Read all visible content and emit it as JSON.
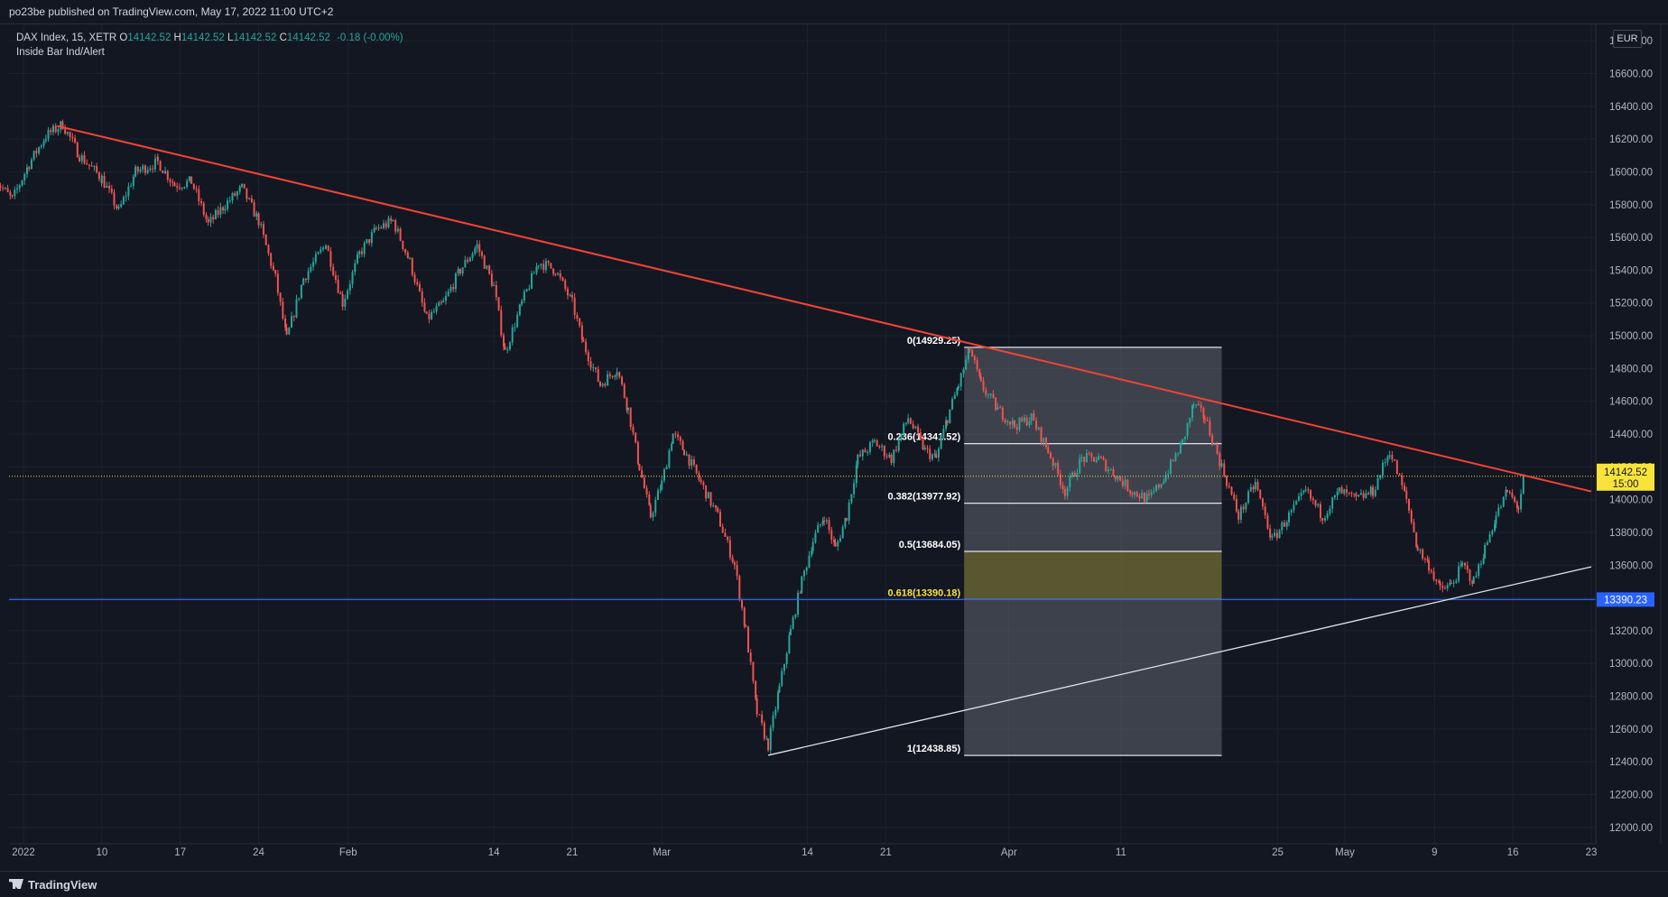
{
  "header": {
    "published": "po23be published on TradingView.com, May 17, 2022 11:00 UTC+2"
  },
  "legend": {
    "symbol": "DAX Index, 15, XETR",
    "open_label": "O",
    "open": "14142.52",
    "high_label": "H",
    "high": "14142.52",
    "low_label": "L",
    "low": "14142.52",
    "close_label": "C",
    "close": "14142.52",
    "change": "-0.18 (-0.00%)",
    "indicator": "Inside Bar Ind/Alert"
  },
  "currency": "EUR",
  "footer": {
    "brand": "TradingView"
  },
  "colors": {
    "up": "#26a69a",
    "down": "#ef5350",
    "trend": "#f44336",
    "support": "#2962ff",
    "price": "#f7e33c",
    "fib_zone": "#5c5a2e"
  },
  "chart_data": {
    "type": "candlestick",
    "title": "DAX Index, 15, XETR",
    "ylim": [
      11900,
      16900
    ],
    "y_ticks": [
      "16800.00",
      "16600.00",
      "16400.00",
      "16200.00",
      "16000.00",
      "15800.00",
      "15600.00",
      "15400.00",
      "15200.00",
      "15000.00",
      "14800.00",
      "14600.00",
      "14400.00",
      "14200.00",
      "14000.00",
      "13800.00",
      "13600.00",
      "13400.00",
      "13200.00",
      "13000.00",
      "12800.00",
      "12600.00",
      "12400.00",
      "12200.00",
      "12000.00"
    ],
    "x_ticks": [
      {
        "label": "2022",
        "day": 3
      },
      {
        "label": "10",
        "day": 10
      },
      {
        "label": "17",
        "day": 17
      },
      {
        "label": "24",
        "day": 24
      },
      {
        "label": "Feb",
        "day": 32
      },
      {
        "label": "14",
        "day": 45
      },
      {
        "label": "21",
        "day": 52
      },
      {
        "label": "Mar",
        "day": 60
      },
      {
        "label": "14",
        "day": 73
      },
      {
        "label": "21",
        "day": 80
      },
      {
        "label": "Apr",
        "day": 91
      },
      {
        "label": "11",
        "day": 101
      },
      {
        "label": "25",
        "day": 115
      },
      {
        "label": "May",
        "day": 121
      },
      {
        "label": "9",
        "day": 129
      },
      {
        "label": "16",
        "day": 136
      },
      {
        "label": "23",
        "day": 143
      }
    ],
    "path": [
      [
        0.5,
        15950
      ],
      [
        2,
        15830
      ],
      [
        3.5,
        16050
      ],
      [
        5,
        16220
      ],
      [
        6.5,
        16290
      ],
      [
        8,
        16100
      ],
      [
        10,
        15960
      ],
      [
        11.5,
        15760
      ],
      [
        13,
        16000
      ],
      [
        15,
        16060
      ],
      [
        16.5,
        15920
      ],
      [
        18,
        15940
      ],
      [
        19.5,
        15680
      ],
      [
        21,
        15800
      ],
      [
        22.5,
        15900
      ],
      [
        24,
        15700
      ],
      [
        25.5,
        15350
      ],
      [
        26.5,
        14980
      ],
      [
        28,
        15350
      ],
      [
        30,
        15560
      ],
      [
        31.5,
        15200
      ],
      [
        33,
        15500
      ],
      [
        34.5,
        15650
      ],
      [
        36,
        15700
      ],
      [
        37.5,
        15450
      ],
      [
        39,
        15100
      ],
      [
        40.5,
        15200
      ],
      [
        42,
        15400
      ],
      [
        43.5,
        15550
      ],
      [
        45,
        15300
      ],
      [
        46,
        14900
      ],
      [
        47.5,
        15200
      ],
      [
        49,
        15450
      ],
      [
        50.5,
        15400
      ],
      [
        52,
        15200
      ],
      [
        53,
        14950
      ],
      [
        54.5,
        14700
      ],
      [
        56,
        14800
      ],
      [
        57,
        14550
      ],
      [
        58,
        14200
      ],
      [
        59,
        13900
      ],
      [
        60,
        14100
      ],
      [
        61,
        14400
      ],
      [
        62,
        14300
      ],
      [
        63.5,
        14100
      ],
      [
        65,
        13900
      ],
      [
        66.5,
        13600
      ],
      [
        67.5,
        13200
      ],
      [
        68.5,
        12700
      ],
      [
        69.5,
        12500
      ],
      [
        70.5,
        12850
      ],
      [
        71.5,
        13200
      ],
      [
        72.5,
        13500
      ],
      [
        73.5,
        13750
      ],
      [
        74.5,
        13900
      ],
      [
        75.5,
        13700
      ],
      [
        76.5,
        13900
      ],
      [
        77.5,
        14250
      ],
      [
        79,
        14350
      ],
      [
        80.5,
        14250
      ],
      [
        82,
        14500
      ],
      [
        83.5,
        14300
      ],
      [
        84.5,
        14250
      ],
      [
        85.5,
        14500
      ],
      [
        86.5,
        14700
      ],
      [
        87.5,
        14920
      ],
      [
        88.5,
        14700
      ],
      [
        90,
        14550
      ],
      [
        91.5,
        14450
      ],
      [
        93,
        14500
      ],
      [
        94.5,
        14300
      ],
      [
        96,
        14050
      ],
      [
        97.5,
        14250
      ],
      [
        99,
        14250
      ],
      [
        100.5,
        14150
      ],
      [
        102,
        14050
      ],
      [
        103.5,
        14000
      ],
      [
        105,
        14150
      ],
      [
        106.5,
        14350
      ],
      [
        107.5,
        14580
      ],
      [
        108.5,
        14500
      ],
      [
        110,
        14200
      ],
      [
        111.5,
        13900
      ],
      [
        113,
        14100
      ],
      [
        114.5,
        13750
      ],
      [
        116,
        13900
      ],
      [
        117.5,
        14050
      ],
      [
        119,
        13900
      ],
      [
        120.5,
        14050
      ],
      [
        122,
        14000
      ],
      [
        123.5,
        14050
      ],
      [
        125,
        14300
      ],
      [
        126.5,
        14000
      ],
      [
        127.5,
        13700
      ],
      [
        128.5,
        13600
      ],
      [
        129.5,
        13450
      ],
      [
        130.5,
        13480
      ],
      [
        131.5,
        13600
      ],
      [
        132.5,
        13500
      ],
      [
        133.5,
        13700
      ],
      [
        134.5,
        13900
      ],
      [
        135.5,
        14050
      ],
      [
        136.5,
        13950
      ],
      [
        137,
        14142.52
      ]
    ],
    "last_price": {
      "value": 14142.52,
      "label": "14142.52",
      "countdown": "15:00"
    },
    "support_line": {
      "value": 13390.23,
      "label": "13390.23"
    },
    "trendlines": [
      {
        "name": "descending",
        "from": [
          6,
          16280
        ],
        "to": [
          143,
          14050
        ]
      },
      {
        "name": "ascending",
        "from": [
          69.5,
          12440
        ],
        "to": [
          143,
          13590
        ]
      }
    ],
    "fibonacci": {
      "from_day": 87,
      "to_day": 110,
      "levels": [
        {
          "ratio": "0",
          "value": 14929.25,
          "label": "0(14929.25)"
        },
        {
          "ratio": "0.236",
          "value": 14341.52,
          "label": "0.236(14341.52)"
        },
        {
          "ratio": "0.382",
          "value": 13977.92,
          "label": "0.382(13977.92)"
        },
        {
          "ratio": "0.5",
          "value": 13684.05,
          "label": "0.5(13684.05)"
        },
        {
          "ratio": "0.618",
          "value": 13390.18,
          "label": "0.618(13390.18)"
        },
        {
          "ratio": "1",
          "value": 12438.85,
          "label": "1(12438.85)"
        }
      ]
    }
  }
}
